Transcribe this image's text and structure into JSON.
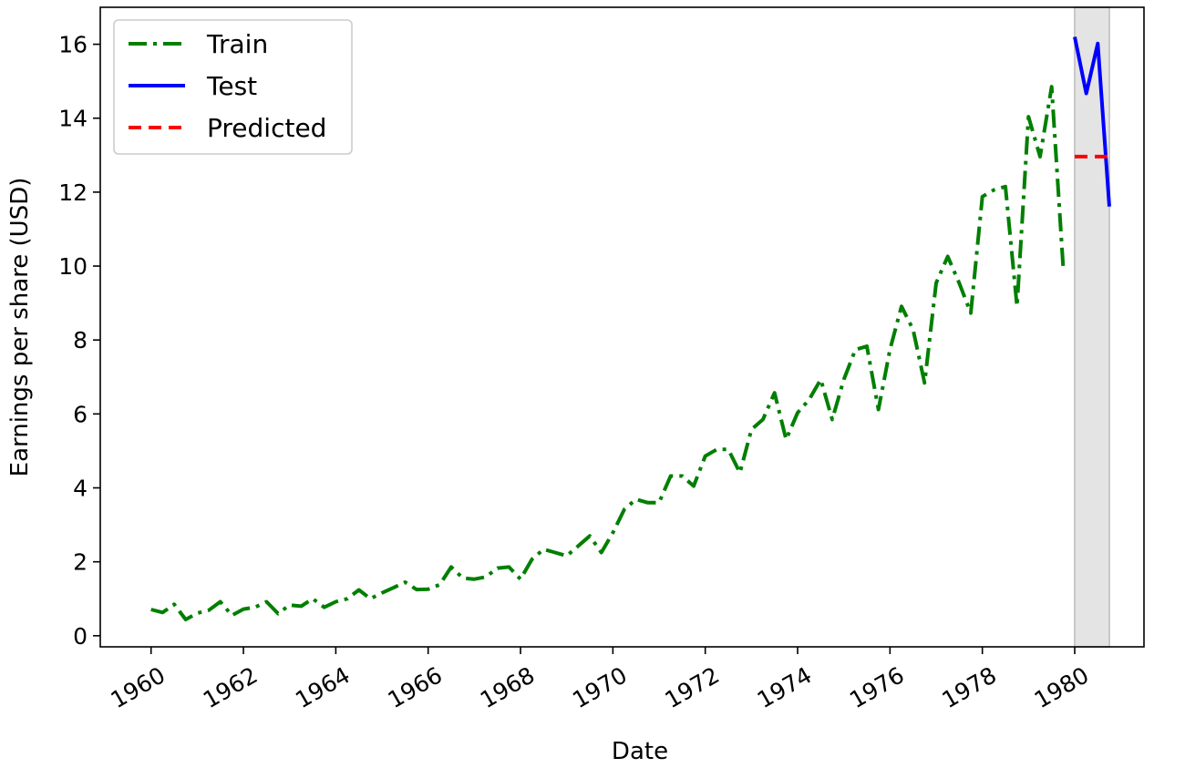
{
  "chart_data": {
    "type": "line",
    "title": "",
    "xlabel": "Date",
    "ylabel": "Earnings per share (USD)",
    "xlim": [
      1958.9,
      1981.5
    ],
    "ylim": [
      -0.3,
      17.0
    ],
    "x_ticks": [
      "1960",
      "1962",
      "1964",
      "1966",
      "1968",
      "1970",
      "1972",
      "1974",
      "1976",
      "1978",
      "1980"
    ],
    "y_ticks": [
      "0",
      "2",
      "4",
      "6",
      "8",
      "10",
      "12",
      "14",
      "16"
    ],
    "grid": false,
    "legend_position": "top-left",
    "shaded_region": {
      "x": [
        1980.0,
        1980.75
      ],
      "color": "#e4e4e4"
    },
    "series": [
      {
        "name": "Train",
        "color": "#007f00",
        "style": "dashdot",
        "x": [
          1960.0,
          1960.25,
          1960.5,
          1960.75,
          1961.0,
          1961.25,
          1961.5,
          1961.75,
          1962.0,
          1962.25,
          1962.5,
          1962.75,
          1963.0,
          1963.25,
          1963.5,
          1963.75,
          1964.0,
          1964.25,
          1964.5,
          1964.75,
          1965.0,
          1965.25,
          1965.5,
          1965.75,
          1966.0,
          1966.25,
          1966.5,
          1966.75,
          1967.0,
          1967.25,
          1967.5,
          1967.75,
          1968.0,
          1968.25,
          1968.5,
          1968.75,
          1969.0,
          1969.25,
          1969.5,
          1969.75,
          1970.0,
          1970.25,
          1970.5,
          1970.75,
          1971.0,
          1971.25,
          1971.5,
          1971.75,
          1972.0,
          1972.25,
          1972.5,
          1972.75,
          1973.0,
          1973.25,
          1973.5,
          1973.75,
          1974.0,
          1974.25,
          1974.5,
          1974.75,
          1975.0,
          1975.25,
          1975.5,
          1975.75,
          1976.0,
          1976.25,
          1976.5,
          1976.75,
          1977.0,
          1977.25,
          1977.5,
          1977.75,
          1978.0,
          1978.25,
          1978.5,
          1978.75,
          1979.0,
          1979.25,
          1979.5,
          1979.75
        ],
        "values": [
          0.71,
          0.63,
          0.85,
          0.44,
          0.61,
          0.69,
          0.92,
          0.55,
          0.72,
          0.77,
          0.92,
          0.6,
          0.83,
          0.8,
          1.0,
          0.77,
          0.92,
          1.0,
          1.24,
          1.0,
          1.16,
          1.3,
          1.45,
          1.25,
          1.26,
          1.38,
          1.86,
          1.56,
          1.53,
          1.59,
          1.83,
          1.86,
          1.53,
          2.07,
          2.34,
          2.25,
          2.16,
          2.43,
          2.7,
          2.25,
          2.79,
          3.42,
          3.69,
          3.6,
          3.6,
          4.32,
          4.32,
          4.05,
          4.86,
          5.04,
          5.04,
          4.41,
          5.58,
          5.85,
          6.57,
          5.31,
          6.03,
          6.39,
          6.93,
          5.85,
          6.93,
          7.74,
          7.83,
          6.12,
          7.74,
          8.91,
          8.28,
          6.84,
          9.54,
          10.26,
          9.54,
          8.73,
          11.88,
          12.06,
          12.15,
          8.91,
          14.04,
          12.96,
          14.85,
          9.99
        ]
      },
      {
        "name": "Test",
        "color": "#0000ff",
        "style": "solid",
        "x": [
          1980.0,
          1980.25,
          1980.5,
          1980.75
        ],
        "values": [
          16.2,
          14.67,
          16.02,
          11.61
        ]
      },
      {
        "name": "Predicted",
        "color": "#ff0000",
        "style": "dashed",
        "x": [
          1980.0,
          1980.25,
          1980.5,
          1980.75
        ],
        "values": [
          12.96,
          12.96,
          12.96,
          12.96
        ]
      }
    ]
  }
}
